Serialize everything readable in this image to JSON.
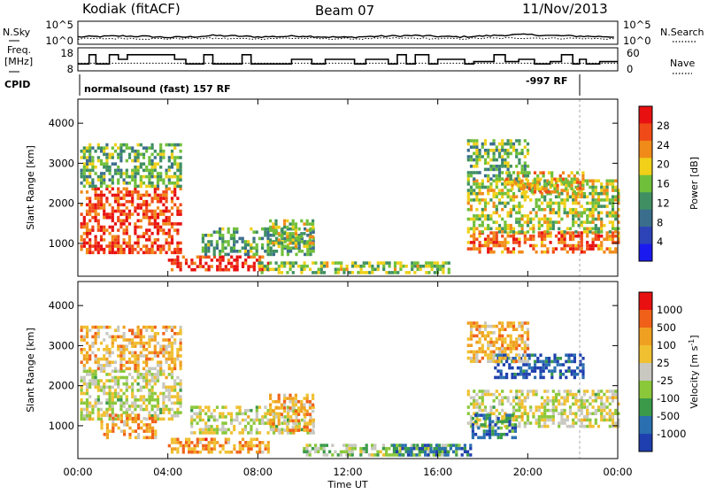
{
  "header": {
    "station": "Kodiak (fitACF)",
    "beam": "Beam 07",
    "date": "11/Nov/2013"
  },
  "left_labels": {
    "nsky": "N.Sky",
    "freq_line1": "Freq.",
    "freq_line2": "[MHz]",
    "cpid": "CPID"
  },
  "right_labels": {
    "nsearch": "N.Search",
    "nave": "Nave"
  },
  "noise_axis": {
    "left_ticks": [
      "10^5",
      "10^0"
    ],
    "right_ticks": [
      "10^5",
      "10^0"
    ]
  },
  "freq_axis": {
    "left_ticks": [
      "18",
      "8"
    ],
    "right_ticks": [
      "60",
      "0"
    ]
  },
  "cpid_strip": {
    "mode_text": "normalsound (fast) 157 RF",
    "mode2_text": "-997 RF"
  },
  "colors": {
    "power_scale": [
      "#1a1aee",
      "#2c44b8",
      "#3a6e8c",
      "#3f8f62",
      "#6fbf3a",
      "#f0d018",
      "#f08a18",
      "#f04a18",
      "#e81010"
    ],
    "velocity_scale": [
      "#1f3fae",
      "#2a6fb0",
      "#3a9a4a",
      "#8ac83a",
      "#c8c8c0",
      "#f0c030",
      "#f0a020",
      "#f06018",
      "#e81010"
    ]
  },
  "chart_data": [
    {
      "type": "heatmap",
      "title": "",
      "quantity": "Power",
      "xlabel": "",
      "ylabel": "Slant Range [km]",
      "x_ticks": [
        "00:00",
        "04:00",
        "08:00",
        "12:00",
        "16:00",
        "20:00",
        "00:00"
      ],
      "y_ticks": [
        "1000",
        "2000",
        "3000",
        "4000"
      ],
      "y_tick_values": [
        1000,
        2000,
        3000,
        4000
      ],
      "ylim": [
        180,
        4600
      ],
      "xlim_hours": [
        0,
        24
      ],
      "colorbar": {
        "label": "Power [dB]",
        "ticks": [
          "4",
          "8",
          "12",
          "16",
          "20",
          "24",
          "28"
        ],
        "range": [
          0,
          30
        ]
      },
      "echo_regions": [
        {
          "t0": 0.1,
          "t1": 4.6,
          "r0": 800,
          "r1": 2400,
          "level": 0.85
        },
        {
          "t0": 0.1,
          "t1": 4.6,
          "r0": 2400,
          "r1": 3500,
          "level": 0.45
        },
        {
          "t0": 4.0,
          "t1": 8.5,
          "r0": 350,
          "r1": 700,
          "level": 0.9
        },
        {
          "t0": 5.5,
          "t1": 10.5,
          "r0": 700,
          "r1": 1400,
          "level": 0.4
        },
        {
          "t0": 8.5,
          "t1": 10.5,
          "r0": 900,
          "r1": 1600,
          "level": 0.55
        },
        {
          "t0": 8.0,
          "t1": 16.5,
          "r0": 300,
          "r1": 550,
          "level": 0.5
        },
        {
          "t0": 17.3,
          "t1": 24.0,
          "r0": 800,
          "r1": 1300,
          "level": 0.8
        },
        {
          "t0": 17.3,
          "t1": 24.0,
          "r0": 1300,
          "r1": 2600,
          "level": 0.55
        },
        {
          "t0": 19.0,
          "t1": 22.5,
          "r0": 2300,
          "r1": 2800,
          "level": 0.65
        },
        {
          "t0": 17.3,
          "t1": 20.0,
          "r0": 2600,
          "r1": 3600,
          "level": 0.45
        }
      ]
    },
    {
      "type": "heatmap",
      "title": "",
      "quantity": "Velocity",
      "xlabel": "Time UT",
      "ylabel": "Slant Range [km]",
      "x_ticks": [
        "00:00",
        "04:00",
        "08:00",
        "12:00",
        "16:00",
        "20:00",
        "00:00"
      ],
      "y_ticks": [
        "1000",
        "2000",
        "3000",
        "4000"
      ],
      "y_tick_values": [
        1000,
        2000,
        3000,
        4000
      ],
      "ylim": [
        180,
        4600
      ],
      "xlim_hours": [
        0,
        24
      ],
      "colorbar": {
        "label": "Velocity [m s",
        "label_exp": "-1",
        "label_end": "]",
        "ticks": [
          "1000",
          "500",
          "100",
          "25",
          "-25",
          "-100",
          "-500",
          "-1000"
        ]
      },
      "echo_regions": [
        {
          "t0": 0.1,
          "t1": 4.6,
          "r0": 1200,
          "r1": 2400,
          "level": 0.5
        },
        {
          "t0": 1.0,
          "t1": 3.5,
          "r0": 700,
          "r1": 1300,
          "level": 0.7
        },
        {
          "t0": 0.1,
          "t1": 4.6,
          "r0": 2400,
          "r1": 3500,
          "level": 0.65
        },
        {
          "t0": 4.0,
          "t1": 8.5,
          "r0": 350,
          "r1": 700,
          "level": 0.72
        },
        {
          "t0": 5.0,
          "t1": 10.5,
          "r0": 800,
          "r1": 1500,
          "level": 0.5
        },
        {
          "t0": 8.5,
          "t1": 10.5,
          "r0": 900,
          "r1": 1800,
          "level": 0.7
        },
        {
          "t0": 10.0,
          "t1": 16.5,
          "r0": 300,
          "r1": 550,
          "level": 0.4
        },
        {
          "t0": 14.0,
          "t1": 17.5,
          "r0": 300,
          "r1": 550,
          "level": 0.2
        },
        {
          "t0": 17.3,
          "t1": 24.0,
          "r0": 1000,
          "r1": 1900,
          "level": 0.5
        },
        {
          "t0": 17.5,
          "t1": 19.5,
          "r0": 700,
          "r1": 1300,
          "level": 0.2
        },
        {
          "t0": 18.5,
          "t1": 22.5,
          "r0": 2200,
          "r1": 2800,
          "level": 0.1
        },
        {
          "t0": 17.3,
          "t1": 20.0,
          "r0": 2600,
          "r1": 3600,
          "level": 0.65
        }
      ]
    }
  ],
  "noise_series": {
    "xlim_hours": [
      0,
      24
    ],
    "sky_log": [
      1.6,
      1.7,
      1.8,
      1.7,
      1.5,
      1.6,
      1.9,
      1.8,
      1.6,
      1.7,
      1.8,
      1.6,
      1.5,
      1.7,
      1.8,
      1.9,
      1.7,
      1.6,
      1.8,
      2.0,
      2.1,
      1.9,
      1.8,
      1.7,
      1.6
    ],
    "search_log": [
      1.2,
      1.2,
      1.3,
      1.2,
      1.2,
      1.3,
      1.3,
      1.2,
      1.2,
      1.3,
      1.3,
      1.2,
      1.2,
      1.2,
      1.3,
      1.3,
      1.2,
      1.2,
      1.3,
      1.3,
      1.4,
      1.3,
      1.3,
      1.2,
      1.2
    ]
  },
  "freq_series": {
    "times": [
      0,
      0.5,
      0.8,
      1.4,
      1.8,
      2.2,
      3.8,
      4.3,
      4.8,
      5.6,
      6.0,
      7.3,
      7.7,
      9.0,
      9.5,
      10.4,
      11.0,
      12.3,
      12.8,
      13.8,
      14.2,
      14.6,
      15.0,
      15.6,
      16.0,
      17.2,
      17.6,
      18.5,
      19.0,
      19.6,
      20.3,
      21.0,
      21.5,
      22.0,
      22.3,
      22.6,
      23.2,
      24.0
    ],
    "mhz": [
      11,
      15,
      11,
      15,
      13,
      15,
      15,
      13,
      11,
      15,
      11,
      15,
      11,
      11,
      13,
      11,
      13,
      11,
      13,
      11,
      15,
      11,
      15,
      11,
      13,
      11,
      12,
      15,
      12,
      13,
      11,
      12,
      15,
      11,
      13,
      11,
      12,
      12
    ],
    "nave_level": 20
  }
}
